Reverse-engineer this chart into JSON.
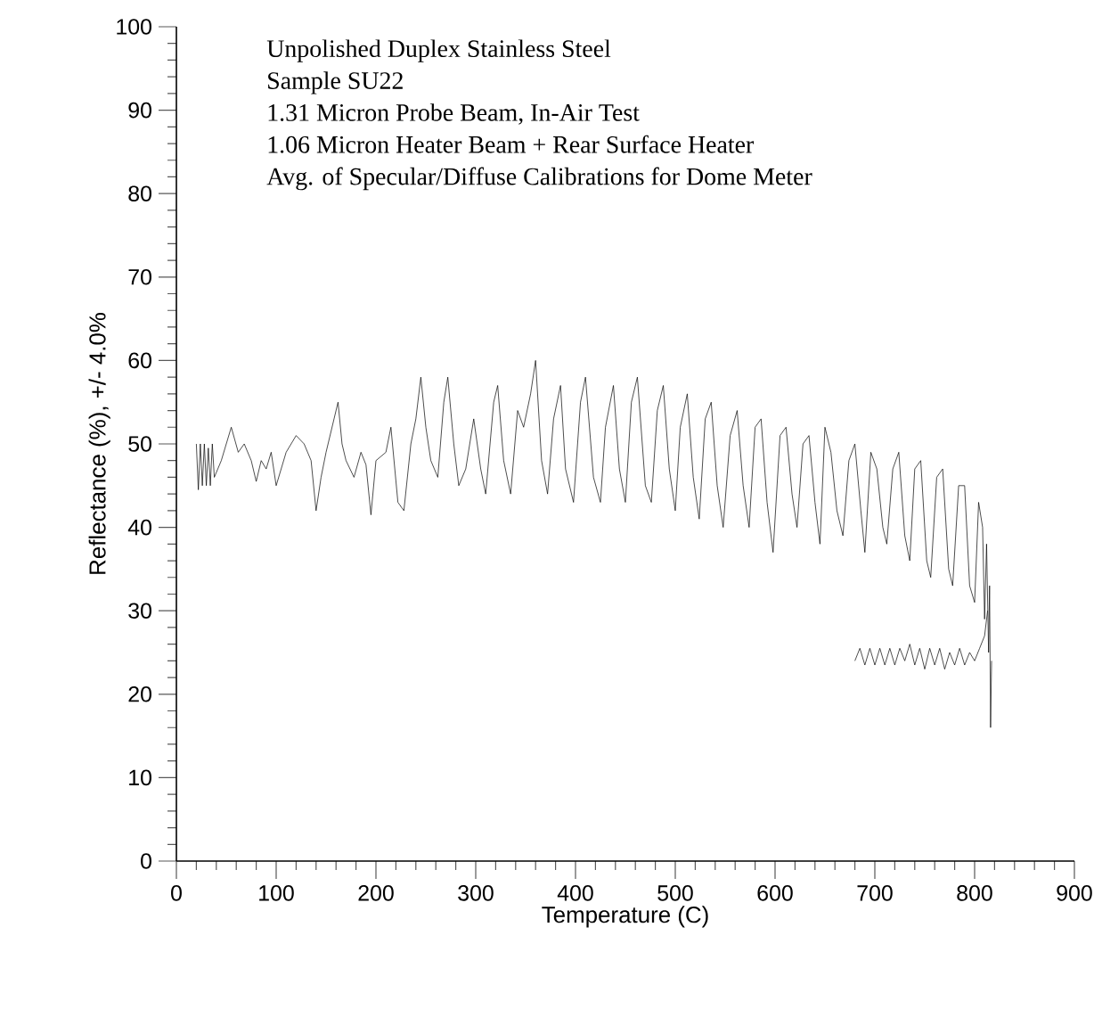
{
  "chart_data": {
    "type": "line",
    "xlabel": "Temperature (C)",
    "ylabel": "Reflectance (%), +/- 4.0%",
    "annotations": [
      "Unpolished Duplex Stainless Steel",
      "Sample SU22",
      "1.31 Micron Probe Beam, In-Air Test",
      "1.06 Micron Heater Beam + Rear Surface Heater",
      "Avg. of Specular/Diffuse Calibrations for Dome Meter"
    ],
    "xlim": [
      0,
      900
    ],
    "ylim": [
      0,
      100
    ],
    "xticks": [
      0,
      100,
      200,
      300,
      400,
      500,
      600,
      700,
      800,
      900
    ],
    "yticks": [
      0,
      10,
      20,
      30,
      40,
      50,
      60,
      70,
      80,
      90,
      100
    ],
    "grid": false,
    "marker": "none",
    "line_style": "solid",
    "series": [
      {
        "color": "#000000",
        "x": [
          20,
          22,
          24,
          26,
          28,
          30,
          32,
          34,
          36,
          38,
          45,
          55,
          62,
          68,
          75,
          80,
          85,
          90,
          95,
          100,
          110,
          120,
          128,
          135,
          140,
          145,
          150,
          158,
          162,
          166,
          170,
          178,
          185,
          190,
          195,
          200,
          210,
          215,
          222,
          228,
          235,
          240,
          245,
          250,
          255,
          262,
          268,
          272,
          278,
          283,
          290,
          298,
          305,
          310,
          318,
          322,
          328,
          335,
          342,
          348,
          355,
          360,
          366,
          372,
          378,
          385,
          390,
          398,
          405,
          410,
          418,
          425,
          430,
          438,
          444,
          450,
          456,
          462,
          470,
          476,
          482,
          488,
          494,
          500,
          505,
          512,
          518,
          524,
          530,
          536,
          542,
          548,
          555,
          562,
          568,
          574,
          580,
          586,
          592,
          598,
          605,
          611,
          617,
          622,
          628,
          634,
          640,
          645,
          650,
          656,
          662,
          668,
          674,
          680,
          686,
          690,
          696,
          702,
          708,
          712,
          718,
          724,
          730,
          735,
          740,
          746,
          752,
          756,
          762,
          768,
          774,
          778,
          784,
          790,
          795,
          800,
          804,
          808,
          810,
          812,
          814,
          815,
          816,
          817
        ],
        "values": [
          50,
          44.5,
          50,
          45,
          50,
          45,
          49.5,
          45,
          50,
          46,
          48,
          52,
          49,
          50,
          48,
          45.5,
          48,
          47,
          49,
          45,
          49,
          51,
          50,
          48,
          42,
          46,
          49,
          53,
          55,
          50,
          48,
          46,
          49,
          47.5,
          41.5,
          48,
          49,
          52,
          43,
          42,
          50,
          53,
          58,
          52,
          48,
          46,
          55,
          58,
          50,
          45,
          47,
          53,
          47,
          44,
          55,
          57,
          48,
          44,
          54,
          52,
          56,
          60,
          48,
          44,
          53,
          57,
          47,
          43,
          55,
          58,
          46,
          43,
          52,
          57,
          47,
          43,
          55,
          58,
          45,
          43,
          54,
          57,
          47,
          42,
          52,
          56,
          46,
          41,
          53,
          55,
          45,
          40,
          51,
          54,
          45,
          40,
          52,
          53,
          43,
          37,
          51,
          52,
          44,
          40,
          50,
          51,
          43,
          38,
          52,
          49,
          42,
          39,
          48,
          50,
          42,
          37,
          49,
          47,
          40,
          38,
          47,
          49,
          39,
          36,
          47,
          48,
          36,
          34,
          46,
          47,
          35,
          33,
          45,
          45,
          33,
          31,
          43,
          40,
          29,
          38,
          25,
          33,
          16,
          24
        ]
      },
      {
        "color": "#000000",
        "x": [
          680,
          685,
          690,
          695,
          700,
          705,
          710,
          715,
          720,
          725,
          730,
          735,
          740,
          745,
          750,
          755,
          760,
          765,
          770,
          775,
          780,
          785,
          790,
          795,
          800,
          805,
          810,
          813
        ],
        "values": [
          24,
          25.5,
          23.5,
          25.5,
          23.5,
          25.5,
          23.5,
          25.5,
          23.5,
          25.5,
          24,
          26,
          23.5,
          25.5,
          23,
          25.5,
          23.5,
          25.5,
          23,
          25,
          23.5,
          25.5,
          23.5,
          25,
          24,
          25.5,
          27,
          30
        ]
      }
    ]
  }
}
